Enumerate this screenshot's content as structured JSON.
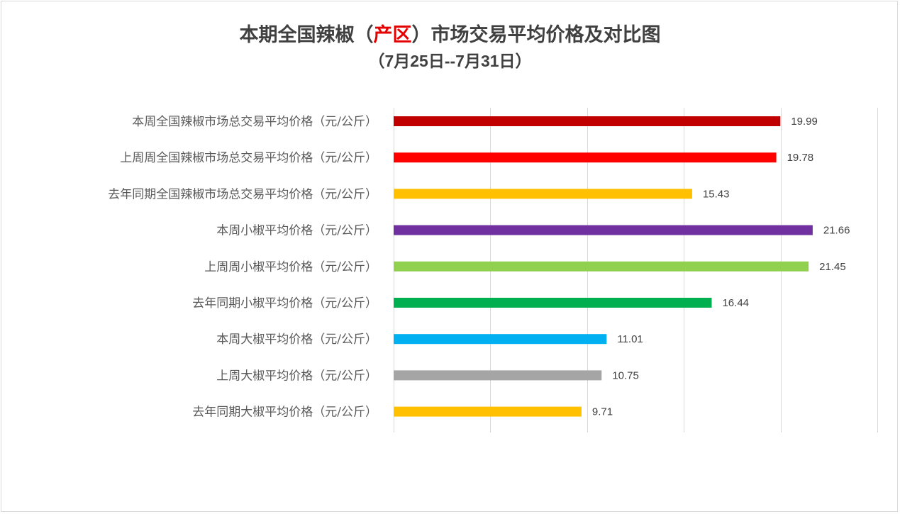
{
  "title": {
    "part1": "本期全国辣椒（",
    "highlight": "产区",
    "part2": "）市场交易平均价格及对比图",
    "line2_open": "（",
    "line2_date": "7月25日--7月31日",
    "line2_close": "）"
  },
  "colors": {
    "title": "#404040",
    "highlight": "#e60000",
    "grid": "#d9d9d9",
    "label": "#595959"
  },
  "chart_data": {
    "type": "bar",
    "orientation": "horizontal",
    "categories": [
      "本周全国辣椒市场总交易平均价格（元/公斤）",
      "上周周全国辣椒市场总交易平均价格（元/公斤）",
      "去年同期全国辣椒市场总交易平均价格（元/公斤）",
      "本周小椒平均价格（元/公斤）",
      "上周周小椒平均价格（元/公斤）",
      "去年同期小椒平均价格（元/公斤）",
      "本周大椒平均价格（元/公斤）",
      "上周大椒平均价格（元/公斤）",
      "去年同期大椒平均价格（元/公斤）"
    ],
    "values": [
      19.99,
      19.78,
      15.43,
      21.66,
      21.45,
      16.44,
      11.01,
      10.75,
      9.71
    ],
    "value_labels": [
      "19.99",
      "19.78",
      "15.43",
      "21.66",
      "21.45",
      "16.44",
      "11.01",
      "10.75",
      "9.71"
    ],
    "bar_colors": [
      "#c00000",
      "#ff0000",
      "#ffc000",
      "#7030a0",
      "#92d050",
      "#00b050",
      "#00b0f0",
      "#a5a5a5",
      "#ffc000"
    ],
    "xlim": [
      0,
      25
    ],
    "grid": true,
    "legend": "none",
    "xlabel": "",
    "ylabel": ""
  }
}
